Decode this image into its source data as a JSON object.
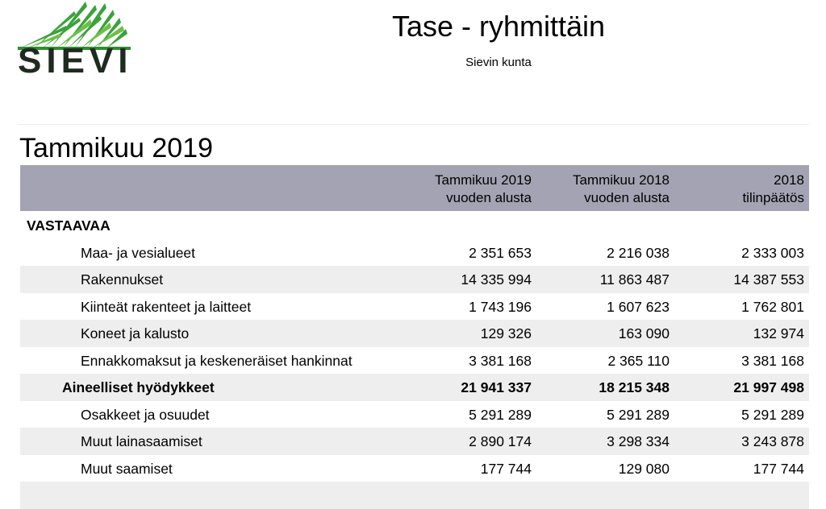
{
  "logo": {
    "text": "SIEVI"
  },
  "header": {
    "title": "Tase - ryhmittäin",
    "subtitle": "Sievin kunta"
  },
  "panel": {
    "title": "Tammikuu 2019"
  },
  "columns": [
    {
      "line1": "Tammikuu 2019",
      "line2": "vuoden alusta"
    },
    {
      "line1": "Tammikuu 2018",
      "line2": "vuoden alusta"
    },
    {
      "line1": "2018",
      "line2": "tilinpäätös"
    }
  ],
  "rows": [
    {
      "label": "VASTAAVAA",
      "values": [
        "",
        "",
        ""
      ],
      "level": 0,
      "bold": true
    },
    {
      "label": "Maa- ja vesialueet",
      "values": [
        "2 351 653",
        "2 216 038",
        "2 333 003"
      ],
      "level": 2,
      "bold": false
    },
    {
      "label": "Rakennukset",
      "values": [
        "14 335 994",
        "11 863 487",
        "14 387 553"
      ],
      "level": 2,
      "bold": false
    },
    {
      "label": "Kiinteät rakenteet ja laitteet",
      "values": [
        "1 743 196",
        "1 607 623",
        "1 762 801"
      ],
      "level": 2,
      "bold": false
    },
    {
      "label": "Koneet ja kalusto",
      "values": [
        "129 326",
        "163 090",
        "132 974"
      ],
      "level": 2,
      "bold": false
    },
    {
      "label": "Ennakkomaksut ja keskeneräiset hankinnat",
      "values": [
        "3 381 168",
        "2 365 110",
        "3 381 168"
      ],
      "level": 2,
      "bold": false
    },
    {
      "label": "Aineelliset hyödykkeet",
      "values": [
        "21 941 337",
        "18 215 348",
        "21 997 498"
      ],
      "level": 1,
      "bold": true
    },
    {
      "label": "Osakkeet ja osuudet",
      "values": [
        "5 291 289",
        "5 291 289",
        "5 291 289"
      ],
      "level": 2,
      "bold": false
    },
    {
      "label": "Muut lainasaamiset",
      "values": [
        "2 890 174",
        "3 298 334",
        "3 243 878"
      ],
      "level": 2,
      "bold": false
    },
    {
      "label": "Muut saamiset",
      "values": [
        "177 744",
        "129 080",
        "177 744"
      ],
      "level": 2,
      "bold": false
    },
    {
      "label": "",
      "values": [
        "",
        "",
        ""
      ],
      "level": 2,
      "bold": false
    }
  ]
}
